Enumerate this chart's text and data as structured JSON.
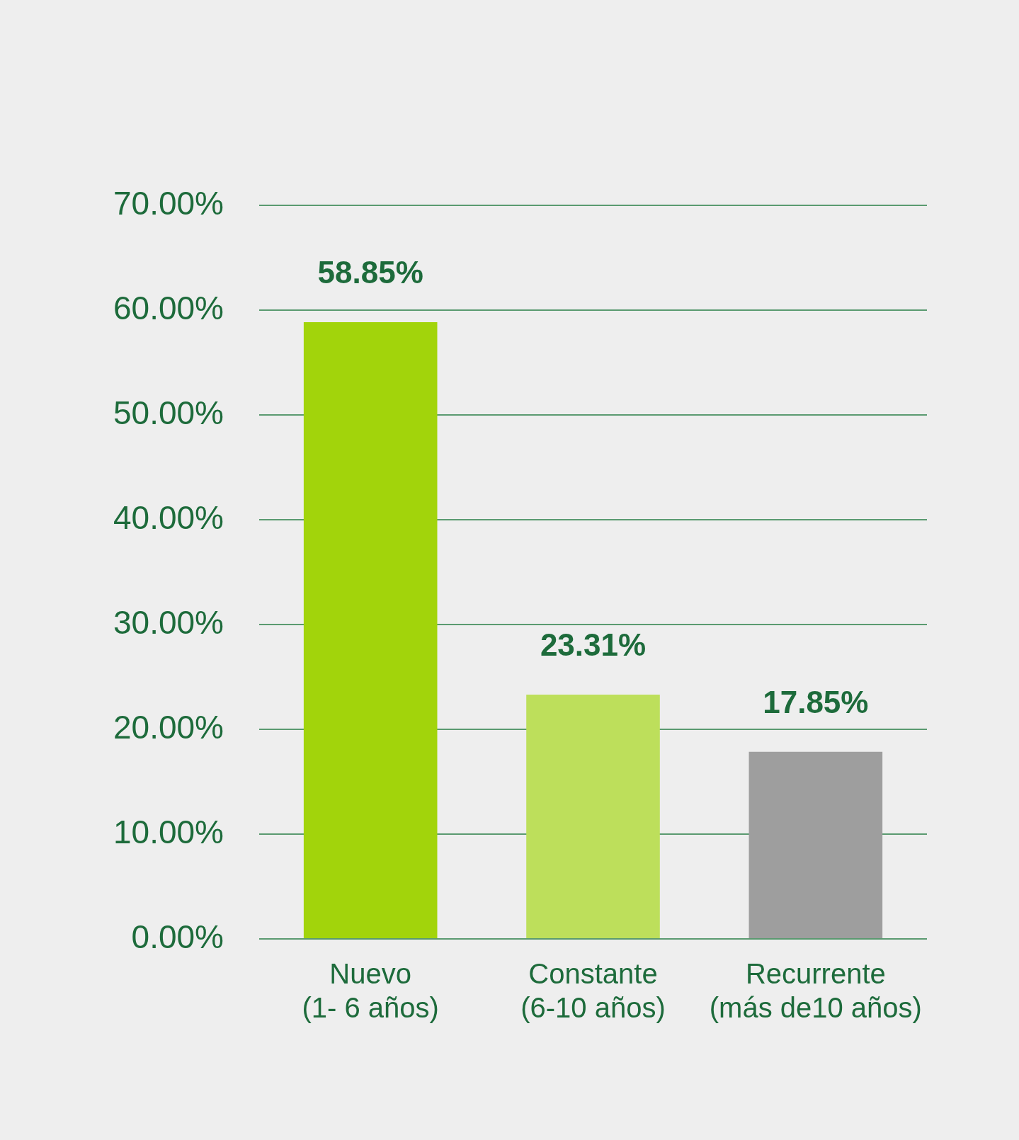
{
  "chart_data": {
    "type": "bar",
    "categories": [
      "Nuevo\n(1- 6 años)",
      "Constante\n(6-10 años)",
      "Recurrente\n(más de10 años)"
    ],
    "values": [
      58.85,
      23.31,
      17.85
    ],
    "colors": [
      "#a2d40b",
      "#bddf5b",
      "#9e9e9e"
    ],
    "value_labels": [
      "58.85%",
      "23.31%",
      "17.85%"
    ],
    "ylim": [
      0,
      70
    ],
    "yticks": [
      {
        "value": 0,
        "label": "0.00%"
      },
      {
        "value": 10,
        "label": "10.00%"
      },
      {
        "value": 20,
        "label": "20.00%"
      },
      {
        "value": 30,
        "label": "30.00%"
      },
      {
        "value": 40,
        "label": "40.00%"
      },
      {
        "value": 50,
        "label": "50.00%"
      },
      {
        "value": 60,
        "label": "60.00%"
      },
      {
        "value": 70,
        "label": "70.00%"
      }
    ],
    "grid": "y"
  }
}
